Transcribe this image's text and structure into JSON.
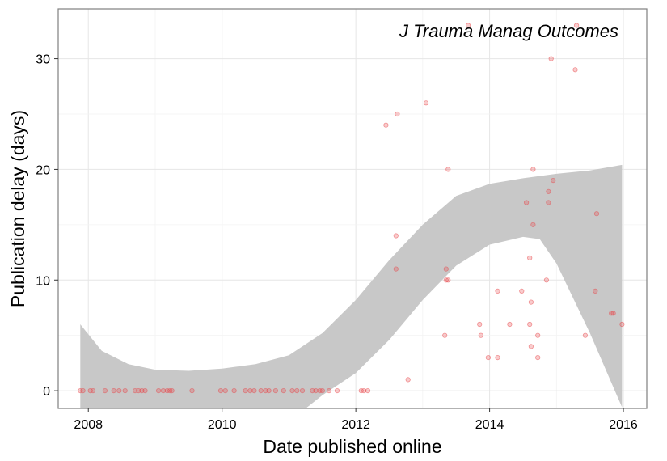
{
  "chart_data": {
    "type": "scatter",
    "title": "",
    "annotation": "J Trauma Manag Outcomes",
    "xlabel": "Date published online",
    "ylabel": "Publication delay (days)",
    "x_ticks": [
      "2008",
      "2010",
      "2012",
      "2014",
      "2016"
    ],
    "y_ticks": [
      "0",
      "10",
      "20",
      "30"
    ],
    "xlim": [
      2007.55,
      2016.35
    ],
    "ylim": [
      -1.6,
      34.5
    ],
    "grid": true,
    "point_color": "#e8474b",
    "band_color": "#c8c8c8",
    "points": [
      [
        2007.88,
        0
      ],
      [
        2007.92,
        0
      ],
      [
        2008.03,
        0
      ],
      [
        2008.07,
        0
      ],
      [
        2008.25,
        0
      ],
      [
        2008.38,
        0
      ],
      [
        2008.46,
        0
      ],
      [
        2008.55,
        0
      ],
      [
        2008.7,
        0
      ],
      [
        2008.75,
        0
      ],
      [
        2008.8,
        0
      ],
      [
        2008.85,
        0
      ],
      [
        2009.05,
        0
      ],
      [
        2009.12,
        0
      ],
      [
        2009.18,
        0
      ],
      [
        2009.22,
        0
      ],
      [
        2009.25,
        0
      ],
      [
        2009.55,
        0
      ],
      [
        2009.98,
        0
      ],
      [
        2010.05,
        0
      ],
      [
        2010.18,
        0
      ],
      [
        2010.35,
        0
      ],
      [
        2010.42,
        0
      ],
      [
        2010.48,
        0
      ],
      [
        2010.58,
        0
      ],
      [
        2010.65,
        0
      ],
      [
        2010.7,
        0
      ],
      [
        2010.8,
        0
      ],
      [
        2010.92,
        0
      ],
      [
        2011.05,
        0
      ],
      [
        2011.12,
        0
      ],
      [
        2011.2,
        0
      ],
      [
        2011.35,
        0
      ],
      [
        2011.4,
        0
      ],
      [
        2011.46,
        0
      ],
      [
        2011.5,
        0
      ],
      [
        2011.6,
        0
      ],
      [
        2011.72,
        0
      ],
      [
        2012.08,
        0
      ],
      [
        2012.12,
        0
      ],
      [
        2012.18,
        0
      ],
      [
        2012.45,
        24
      ],
      [
        2012.62,
        25
      ],
      [
        2012.6,
        14
      ],
      [
        2012.6,
        11
      ],
      [
        2012.78,
        1
      ],
      [
        2013.05,
        26
      ],
      [
        2013.33,
        5
      ],
      [
        2013.35,
        11
      ],
      [
        2013.35,
        10
      ],
      [
        2013.38,
        10
      ],
      [
        2013.38,
        20
      ],
      [
        2013.68,
        33
      ],
      [
        2013.85,
        6
      ],
      [
        2013.87,
        5
      ],
      [
        2013.98,
        3
      ],
      [
        2014.12,
        3
      ],
      [
        2014.12,
        9
      ],
      [
        2014.48,
        9
      ],
      [
        2014.3,
        6
      ],
      [
        2014.55,
        17
      ],
      [
        2014.6,
        6
      ],
      [
        2014.6,
        12
      ],
      [
        2014.62,
        4
      ],
      [
        2014.62,
        8
      ],
      [
        2014.65,
        20
      ],
      [
        2014.65,
        15
      ],
      [
        2014.72,
        3
      ],
      [
        2014.72,
        5
      ],
      [
        2014.85,
        10
      ],
      [
        2014.88,
        18
      ],
      [
        2014.88,
        17
      ],
      [
        2014.92,
        30
      ],
      [
        2014.95,
        19
      ],
      [
        2015.28,
        29
      ],
      [
        2015.3,
        33
      ],
      [
        2015.43,
        5
      ],
      [
        2015.58,
        9
      ],
      [
        2015.6,
        16
      ],
      [
        2015.82,
        7
      ],
      [
        2015.85,
        7
      ],
      [
        2015.98,
        6
      ]
    ],
    "smooth_band": {
      "x": [
        2007.88,
        2008.2,
        2008.6,
        2009.0,
        2009.5,
        2010.0,
        2010.5,
        2011.0,
        2011.5,
        2012.0,
        2012.5,
        2013.0,
        2013.5,
        2014.0,
        2014.5,
        2014.75,
        2015.0,
        2015.5,
        2015.98
      ],
      "upper": [
        6.0,
        3.6,
        2.4,
        1.9,
        1.8,
        2.0,
        2.4,
        3.2,
        5.2,
        8.2,
        11.8,
        15.0,
        17.6,
        18.7,
        19.2,
        19.4,
        19.6,
        19.9,
        20.4
      ],
      "lower": [
        -3.0,
        -3.8,
        -4.4,
        -4.8,
        -5.0,
        -5.1,
        -4.0,
        -2.8,
        -0.4,
        1.6,
        4.6,
        8.2,
        11.3,
        13.2,
        13.9,
        13.7,
        11.5,
        5.2,
        -1.5
      ]
    }
  }
}
